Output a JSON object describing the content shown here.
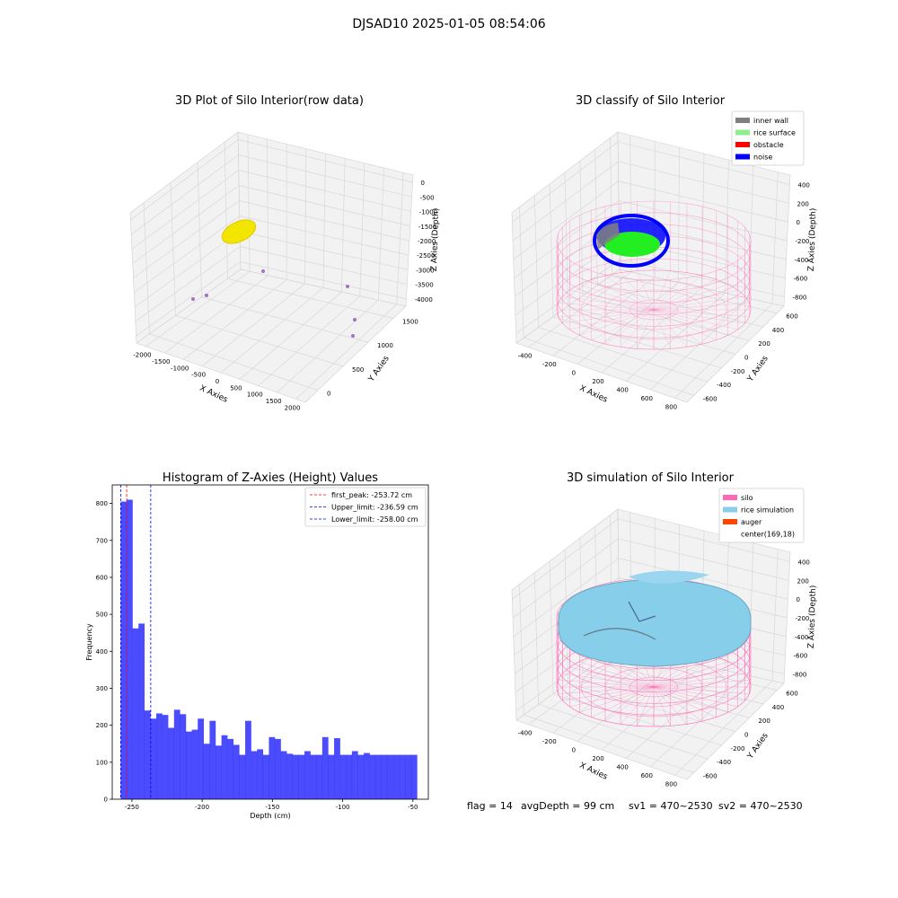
{
  "suptitle": "DJSAD10 2025-01-05 08:54:06",
  "footer": {
    "flag": "flag = 14",
    "avg_depth": "avgDepth = 99 cm",
    "sv1": "sv1 = 470~2530",
    "sv2": "sv2 = 470~2530"
  },
  "panels": {
    "raw": {
      "title": "3D Plot of Silo Interior(row data)",
      "xlabel": "X Axies",
      "ylabel": "Y Axies",
      "zlabel": "Z Axies (Depth)",
      "xticks": [
        "-2000",
        "-1500",
        "-1000",
        "-500",
        "0",
        "500",
        "1000",
        "1500",
        "2000"
      ],
      "yticks": [
        "0",
        "500",
        "1000",
        "1500"
      ],
      "zticks": [
        "0",
        "-500",
        "-1000",
        "-1500",
        "-2000",
        "-2500",
        "-3000",
        "-3500",
        "-4000"
      ],
      "colors": {
        "cluster": "#f2e600",
        "outlier": "#8e44ad"
      }
    },
    "classify": {
      "title": "3D classify of Silo Interior",
      "xlabel": "X Axies",
      "ylabel": "Y Axies",
      "zlabel": "Z Axies (Depth)",
      "xticks": [
        "-400",
        "-200",
        "0",
        "200",
        "400",
        "600",
        "800"
      ],
      "yticks": [
        "-600",
        "-400",
        "-200",
        "0",
        "200",
        "400",
        "600"
      ],
      "zticks": [
        "400",
        "200",
        "0",
        "-200",
        "-400",
        "-600",
        "-800"
      ],
      "legend": [
        {
          "label": "inner wall",
          "color": "#808080"
        },
        {
          "label": "rice surface",
          "color": "#90ee90"
        },
        {
          "label": "obstacle",
          "color": "#ff0000"
        },
        {
          "label": "noise",
          "color": "#0000ff"
        }
      ]
    },
    "histogram": {
      "title": "Histogram of Z-Axies (Height) Values",
      "xlabel": "Depth (cm)",
      "ylabel": "Frequency",
      "legend": [
        {
          "label": "first_peak: -253.72 cm",
          "color": "#ff0000"
        },
        {
          "label": "Upper_limit: -236.59 cm",
          "color": "#0000ff"
        },
        {
          "label": "Lower_limit: -258.00 cm",
          "color": "#0000ff"
        }
      ]
    },
    "simulation": {
      "title": "3D simulation of Silo Interior",
      "xlabel": "X Axies",
      "ylabel": "Y Axies",
      "zlabel": "Z Axies (Depth)",
      "xticks": [
        "-400",
        "-200",
        "0",
        "200",
        "400",
        "600",
        "800"
      ],
      "yticks": [
        "-600",
        "-400",
        "-200",
        "0",
        "200",
        "400",
        "600"
      ],
      "zticks": [
        "400",
        "200",
        "0",
        "-200",
        "-400",
        "-600",
        "-800"
      ],
      "legend": [
        {
          "label": "silo",
          "color": "#ff69b4"
        },
        {
          "label": "rice simulation",
          "color": "#87ceeb"
        },
        {
          "label": "auger",
          "color": "#ff4500"
        },
        {
          "label": "center(169,18)",
          "color": ""
        }
      ]
    }
  },
  "chart_data": [
    {
      "type": "bar",
      "title": "Histogram of Z-Axies (Height) Values",
      "xlabel": "Depth (cm)",
      "ylabel": "Frequency",
      "xlim": [
        -264,
        -39
      ],
      "ylim": [
        0,
        850
      ],
      "xticks": [
        -250,
        -200,
        -150,
        -100,
        -50
      ],
      "yticks": [
        0,
        100,
        200,
        300,
        400,
        500,
        600,
        700,
        800
      ],
      "bar_color": "#0000ff",
      "bins_start": -258.0,
      "bin_width": 4.22,
      "values": [
        805,
        810,
        462,
        475,
        240,
        218,
        232,
        228,
        193,
        242,
        230,
        183,
        188,
        218,
        150,
        212,
        145,
        173,
        163,
        147,
        120,
        212,
        130,
        135,
        120,
        168,
        163,
        130,
        123,
        120,
        120,
        130,
        120,
        120,
        168,
        120,
        165,
        120,
        120,
        130,
        120,
        125,
        120,
        120,
        120,
        120,
        120,
        120,
        120,
        120
      ],
      "vlines": [
        {
          "label": "first_peak: -253.72 cm",
          "x": -253.72,
          "color": "#ff0000"
        },
        {
          "label": "Upper_limit: -236.59 cm",
          "x": -236.59,
          "color": "#0000ff"
        },
        {
          "label": "Lower_limit: -258.00 cm",
          "x": -258.0,
          "color": "#0000ff"
        }
      ],
      "grid": false,
      "legend_position": "top-right"
    }
  ]
}
